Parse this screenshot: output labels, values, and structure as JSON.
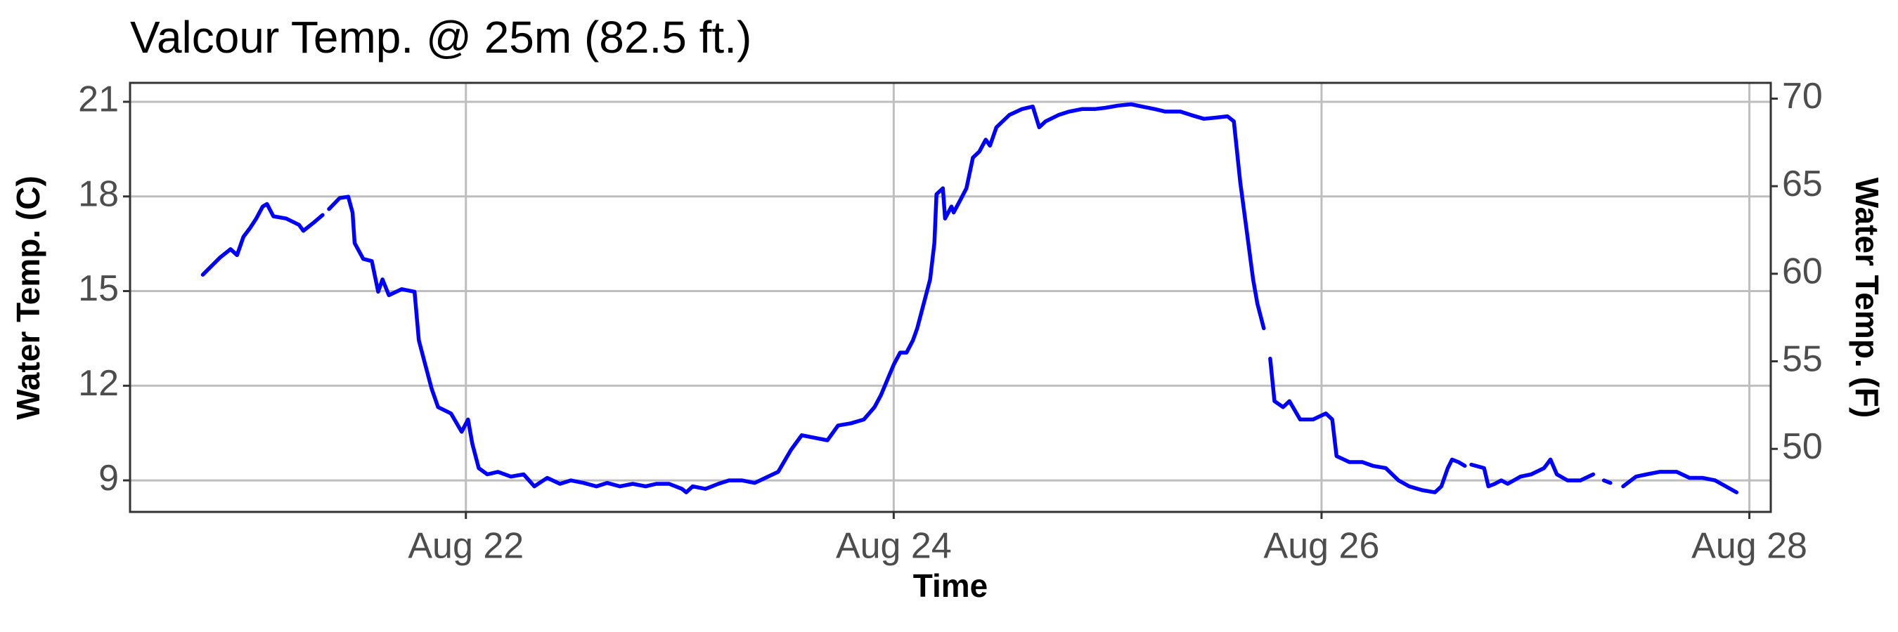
{
  "chart_data": {
    "type": "line",
    "title": "Valcour Temp. @ 25m (82.5 ft.)",
    "x_label": "Time",
    "y_label": "Water Temp. (C)",
    "y2_label": "Water Temp. (F)",
    "color": "#0000ff",
    "grid": true,
    "xlim": [
      20.43,
      28.1
    ],
    "xticks": [
      {
        "value": 22,
        "label": "Aug 22"
      },
      {
        "value": 24,
        "label": "Aug 24"
      },
      {
        "value": 26,
        "label": "Aug 26"
      },
      {
        "value": 28,
        "label": "Aug 28"
      }
    ],
    "ylim": [
      8.0,
      21.6
    ],
    "yticks": [
      9,
      12,
      15,
      18,
      21
    ],
    "y2lim": [
      46.4,
      70.9
    ],
    "y2ticks": [
      50,
      55,
      60,
      65,
      70
    ],
    "x": [
      20.77,
      20.85,
      20.9,
      20.93,
      20.96,
      20.99,
      21.02,
      21.05,
      21.07,
      21.1,
      21.16,
      21.22,
      21.24,
      21.29,
      21.33,
      21.345,
      21.36,
      21.41,
      21.45,
      21.47,
      21.48,
      21.52,
      21.56,
      21.59,
      21.61,
      21.64,
      21.7,
      21.76,
      21.78,
      21.81,
      21.84,
      21.87,
      21.93,
      21.98,
      22.01,
      22.03,
      22.06,
      22.1,
      22.15,
      22.21,
      22.27,
      22.32,
      22.38,
      22.44,
      22.49,
      22.55,
      22.61,
      22.66,
      22.72,
      22.78,
      22.84,
      22.89,
      22.95,
      23.01,
      23.03,
      23.06,
      23.12,
      23.18,
      23.23,
      23.29,
      23.35,
      23.4,
      23.46,
      23.52,
      23.57,
      23.63,
      23.69,
      23.74,
      23.8,
      23.86,
      23.91,
      23.94,
      24.0,
      24.03,
      24.06,
      24.09,
      24.11,
      24.14,
      24.17,
      24.19,
      24.2,
      24.23,
      24.24,
      24.27,
      24.28,
      24.31,
      24.34,
      24.37,
      24.4,
      24.43,
      24.45,
      24.48,
      24.54,
      24.6,
      24.65,
      24.68,
      24.71,
      24.77,
      24.82,
      24.88,
      24.94,
      24.99,
      25.05,
      25.11,
      25.16,
      25.22,
      25.27,
      25.34,
      25.39,
      25.45,
      25.51,
      25.56,
      25.59,
      25.62,
      25.65,
      25.68,
      25.7,
      25.73,
      25.745,
      25.76,
      25.78,
      25.82,
      25.85,
      25.9,
      25.96,
      26.02,
      26.05,
      26.07,
      26.13,
      26.19,
      26.24,
      26.3,
      26.36,
      26.41,
      26.47,
      26.53,
      26.56,
      26.59,
      26.61,
      26.64,
      26.67,
      26.685,
      26.7,
      26.76,
      26.78,
      26.81,
      26.84,
      26.87,
      26.93,
      26.98,
      27.04,
      27.07,
      27.1,
      27.15,
      27.21,
      27.27,
      27.295,
      27.32,
      27.35,
      27.38,
      27.41,
      27.47,
      27.52,
      27.58,
      27.66,
      27.72,
      27.78,
      27.84,
      27.94
    ],
    "values": [
      15.52,
      16.06,
      16.33,
      16.14,
      16.72,
      16.99,
      17.3,
      17.68,
      17.76,
      17.37,
      17.3,
      17.1,
      16.91,
      17.18,
      17.41,
      null,
      17.6,
      17.95,
      17.99,
      17.49,
      16.52,
      16.02,
      15.95,
      14.98,
      15.37,
      14.87,
      15.06,
      14.98,
      13.44,
      12.67,
      11.9,
      11.32,
      11.12,
      10.54,
      10.93,
      10.16,
      9.39,
      9.19,
      9.27,
      9.12,
      9.19,
      8.81,
      9.08,
      8.89,
      9.0,
      8.92,
      8.81,
      8.92,
      8.81,
      8.89,
      8.81,
      8.89,
      8.89,
      8.73,
      8.62,
      8.81,
      8.73,
      8.89,
      9.0,
      9.0,
      8.92,
      9.08,
      9.27,
      9.97,
      10.43,
      10.35,
      10.27,
      10.74,
      10.81,
      10.93,
      11.32,
      11.7,
      12.67,
      13.05,
      13.05,
      13.44,
      13.82,
      14.6,
      15.37,
      16.52,
      18.07,
      18.26,
      17.3,
      17.68,
      17.49,
      17.87,
      18.26,
      19.23,
      19.42,
      19.8,
      19.61,
      20.19,
      20.58,
      20.77,
      20.85,
      20.19,
      20.38,
      20.58,
      20.69,
      20.77,
      20.77,
      20.81,
      20.88,
      20.92,
      20.85,
      20.77,
      20.69,
      20.69,
      20.58,
      20.46,
      20.5,
      20.54,
      20.38,
      18.45,
      16.91,
      15.37,
      14.6,
      13.82,
      null,
      12.86,
      11.51,
      11.32,
      11.51,
      10.93,
      10.93,
      11.12,
      10.93,
      9.77,
      9.58,
      9.58,
      9.46,
      9.39,
      9.0,
      8.81,
      8.69,
      8.62,
      8.81,
      9.39,
      9.66,
      9.58,
      9.46,
      null,
      9.5,
      9.39,
      8.81,
      8.89,
      9.0,
      8.89,
      9.12,
      9.19,
      9.39,
      9.66,
      9.19,
      9.0,
      9.0,
      9.19,
      null,
      9.0,
      8.92,
      null,
      8.81,
      9.12,
      9.19,
      9.27,
      9.27,
      9.08,
      9.08,
      9.0,
      8.62
    ]
  }
}
